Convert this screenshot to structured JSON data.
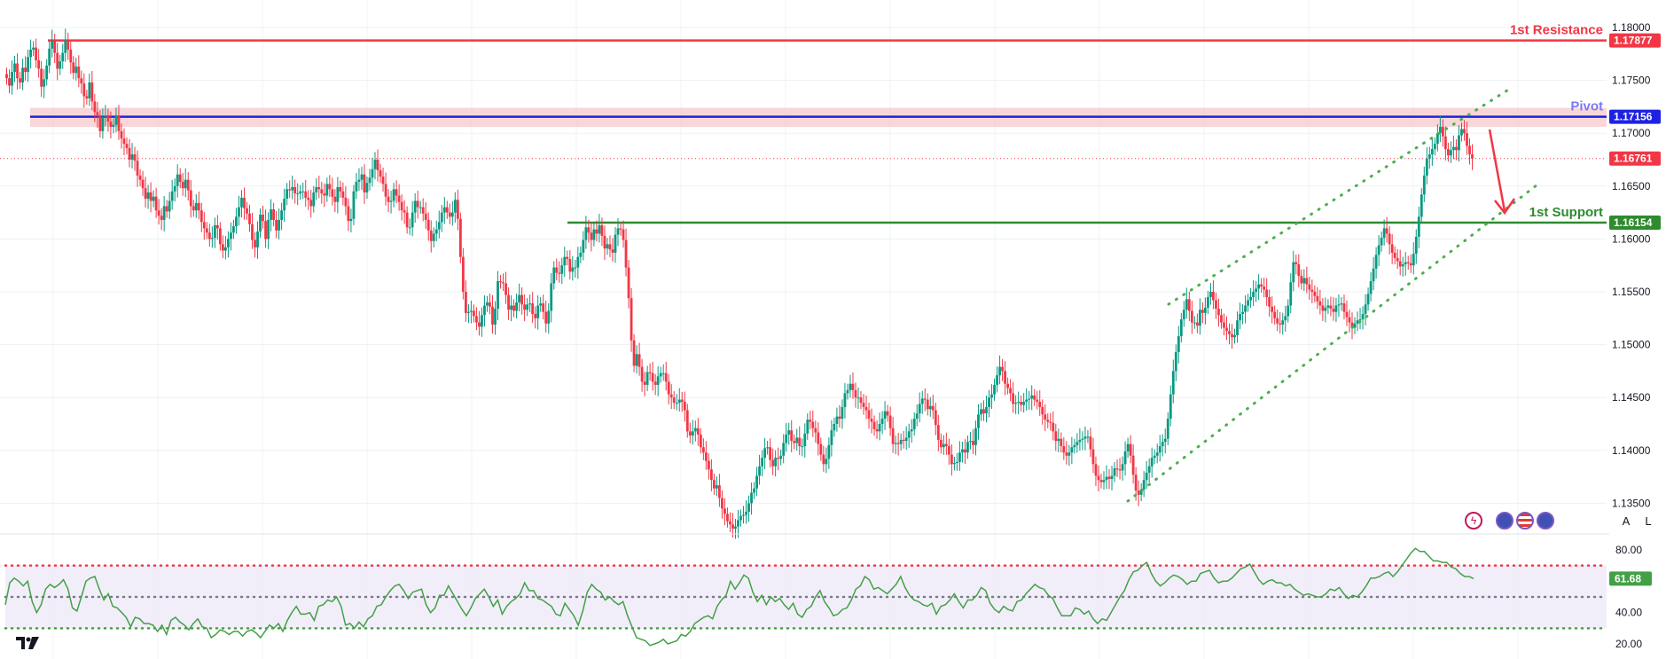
{
  "chart_data": [
    {
      "type": "candlestick",
      "title": "",
      "ylim": [
        1.13,
        1.18
      ],
      "y_ticks": [
        "1.18000",
        "1.17500",
        "1.17000",
        "1.16500",
        "1.16000",
        "1.15500",
        "1.15000",
        "1.14500",
        "1.14000",
        "1.13500"
      ],
      "y_tick_values": [
        1.18,
        1.175,
        1.17,
        1.165,
        1.16,
        1.155,
        1.15,
        1.145,
        1.14,
        1.135
      ],
      "levels": [
        {
          "name": "1st Resistance",
          "value": 1.17877,
          "label": "1.17877",
          "color": "#f23645"
        },
        {
          "name": "Pivot",
          "value": 1.17156,
          "label": "1.17156",
          "color": "#1e22e0",
          "label_color": "#7b7bf5"
        },
        {
          "name": "1st Support",
          "value": 1.16154,
          "label": "1.16154",
          "color": "#2e8b2e"
        }
      ],
      "last_price": {
        "value": 1.16761,
        "label": "1.16761",
        "color": "#f23645"
      },
      "resistance_zone": [
        1.1706,
        1.1724
      ],
      "up_color": "#089981",
      "down_color": "#f23645",
      "channel_color": "#4caf50",
      "arrow_color": "#f23645",
      "candles_close": [
        1.1752,
        1.1745,
        1.1758,
        1.1766,
        1.1752,
        1.1748,
        1.1762,
        1.1758,
        1.1772,
        1.1779,
        1.1781,
        1.1769,
        1.1761,
        1.1744,
        1.1751,
        1.1764,
        1.178,
        1.1787,
        1.1776,
        1.1761,
        1.1768,
        1.1776,
        1.1788,
        1.1779,
        1.1767,
        1.1757,
        1.1763,
        1.1752,
        1.1747,
        1.1735,
        1.1733,
        1.1748,
        1.173,
        1.172,
        1.1716,
        1.1702,
        1.1715,
        1.1716,
        1.1711,
        1.1706,
        1.1708,
        1.1716,
        1.1702,
        1.1695,
        1.169,
        1.1686,
        1.1675,
        1.168,
        1.1674,
        1.166,
        1.1656,
        1.1648,
        1.1638,
        1.1644,
        1.1636,
        1.164,
        1.1627,
        1.1622,
        1.1618,
        1.1631,
        1.1626,
        1.1636,
        1.1645,
        1.165,
        1.1661,
        1.1654,
        1.1648,
        1.1656,
        1.1646,
        1.1631,
        1.1627,
        1.1634,
        1.1627,
        1.1616,
        1.161,
        1.1606,
        1.16,
        1.1601,
        1.1613,
        1.161,
        1.1595,
        1.1589,
        1.1592,
        1.16,
        1.1606,
        1.1612,
        1.1621,
        1.163,
        1.1639,
        1.1629,
        1.1624,
        1.1614,
        1.1599,
        1.1592,
        1.1607,
        1.1623,
        1.1617,
        1.16,
        1.1618,
        1.1628,
        1.1618,
        1.1608,
        1.1618,
        1.1627,
        1.1638,
        1.1647,
        1.1646,
        1.1649,
        1.1643,
        1.1643,
        1.1645,
        1.1645,
        1.1639,
        1.1637,
        1.1631,
        1.1644,
        1.1649,
        1.1647,
        1.1643,
        1.1641,
        1.1652,
        1.1647,
        1.164,
        1.1635,
        1.1649,
        1.1645,
        1.1639,
        1.1631,
        1.1617,
        1.1619,
        1.1645,
        1.1654,
        1.1656,
        1.1661,
        1.1644,
        1.1653,
        1.1658,
        1.1666,
        1.1675,
        1.1665,
        1.1659,
        1.1652,
        1.164,
        1.1635,
        1.1636,
        1.1647,
        1.1641,
        1.1635,
        1.1627,
        1.1625,
        1.1611,
        1.1611,
        1.1625,
        1.1636,
        1.163,
        1.163,
        1.1624,
        1.1618,
        1.1608,
        1.1598,
        1.1605,
        1.1609,
        1.1616,
        1.1625,
        1.163,
        1.1625,
        1.1621,
        1.1625,
        1.1637,
        1.1619,
        1.1583,
        1.155,
        1.153,
        1.1531,
        1.1532,
        1.1527,
        1.1521,
        1.1517,
        1.1528,
        1.1537,
        1.154,
        1.1536,
        1.1519,
        1.1534,
        1.156,
        1.1559,
        1.1558,
        1.1547,
        1.1533,
        1.1537,
        1.1532,
        1.154,
        1.1547,
        1.1538,
        1.1533,
        1.1538,
        1.1539,
        1.1529,
        1.1525,
        1.1537,
        1.1539,
        1.1531,
        1.152,
        1.1532,
        1.1558,
        1.1573,
        1.1568,
        1.1567,
        1.1575,
        1.1583,
        1.1581,
        1.1569,
        1.1573,
        1.1573,
        1.1583,
        1.1587,
        1.1599,
        1.1611,
        1.1606,
        1.1599,
        1.1609,
        1.1605,
        1.1613,
        1.1603,
        1.1591,
        1.1595,
        1.159,
        1.1587,
        1.1604,
        1.161,
        1.1609,
        1.1599,
        1.1573,
        1.1544,
        1.1504,
        1.148,
        1.1491,
        1.1479,
        1.1465,
        1.1462,
        1.1474,
        1.1473,
        1.1465,
        1.1462,
        1.147,
        1.1473,
        1.1473,
        1.1465,
        1.1453,
        1.145,
        1.1445,
        1.1445,
        1.1448,
        1.1446,
        1.1438,
        1.1418,
        1.1414,
        1.1418,
        1.1421,
        1.1415,
        1.1403,
        1.1398,
        1.139,
        1.1382,
        1.1372,
        1.1364,
        1.1367,
        1.1355,
        1.1345,
        1.134,
        1.1333,
        1.133,
        1.1326,
        1.1328,
        1.1334,
        1.1338,
        1.1339,
        1.1342,
        1.135,
        1.136,
        1.1364,
        1.1376,
        1.1385,
        1.1393,
        1.1402,
        1.1403,
        1.1391,
        1.1385,
        1.1393,
        1.1392,
        1.1395,
        1.1407,
        1.1415,
        1.1419,
        1.1409,
        1.1407,
        1.1412,
        1.1404,
        1.1404,
        1.1416,
        1.1429,
        1.1427,
        1.1421,
        1.1417,
        1.1406,
        1.1396,
        1.1387,
        1.1392,
        1.1405,
        1.1419,
        1.1425,
        1.1432,
        1.143,
        1.1441,
        1.1454,
        1.1457,
        1.1463,
        1.1457,
        1.145,
        1.145,
        1.1445,
        1.1441,
        1.1438,
        1.143,
        1.1427,
        1.142,
        1.1418,
        1.1425,
        1.143,
        1.1437,
        1.1433,
        1.1421,
        1.1406,
        1.1407,
        1.1406,
        1.141,
        1.1409,
        1.1412,
        1.1418,
        1.142,
        1.143,
        1.1435,
        1.1444,
        1.1449,
        1.1448,
        1.1439,
        1.1442,
        1.1438,
        1.1424,
        1.141,
        1.1403,
        1.1406,
        1.1404,
        1.1396,
        1.1387,
        1.1388,
        1.1389,
        1.1398,
        1.1401,
        1.1398,
        1.1408,
        1.1409,
        1.1405,
        1.1421,
        1.1434,
        1.1439,
        1.1435,
        1.1441,
        1.145,
        1.1453,
        1.1462,
        1.1471,
        1.1479,
        1.1475,
        1.1463,
        1.1459,
        1.1454,
        1.1444,
        1.1445,
        1.1446,
        1.1443,
        1.1446,
        1.1448,
        1.1449,
        1.1452,
        1.1448,
        1.1446,
        1.1441,
        1.1434,
        1.1429,
        1.1427,
        1.1426,
        1.1418,
        1.1409,
        1.1411,
        1.1404,
        1.1398,
        1.1395,
        1.1398,
        1.1403,
        1.1405,
        1.1408,
        1.141,
        1.1411,
        1.1413,
        1.1413,
        1.1401,
        1.1387,
        1.1376,
        1.1372,
        1.137,
        1.1372,
        1.1375,
        1.1373,
        1.1376,
        1.1383,
        1.1382,
        1.1381,
        1.1387,
        1.1399,
        1.1406,
        1.1395,
        1.1377,
        1.1362,
        1.1358,
        1.1363,
        1.1372,
        1.1379,
        1.1385,
        1.1393,
        1.1395,
        1.1398,
        1.1404,
        1.1408,
        1.1411,
        1.143,
        1.1453,
        1.1475,
        1.1493,
        1.1508,
        1.1524,
        1.1533,
        1.1543,
        1.1532,
        1.1521,
        1.1521,
        1.1518,
        1.1533,
        1.153,
        1.1535,
        1.1545,
        1.155,
        1.1542,
        1.1534,
        1.1528,
        1.1521,
        1.1516,
        1.1513,
        1.151,
        1.1507,
        1.1509,
        1.1523,
        1.1529,
        1.1531,
        1.1537,
        1.1542,
        1.1545,
        1.155,
        1.1553,
        1.1557,
        1.1555,
        1.1552,
        1.1545,
        1.1536,
        1.1531,
        1.1525,
        1.152,
        1.1519,
        1.1523,
        1.1527,
        1.1537,
        1.1559,
        1.1578,
        1.1576,
        1.1565,
        1.1558,
        1.1563,
        1.1557,
        1.1552,
        1.155,
        1.1546,
        1.1541,
        1.1537,
        1.1532,
        1.1535,
        1.1537,
        1.1534,
        1.1531,
        1.1537,
        1.1538,
        1.1539,
        1.1531,
        1.1526,
        1.1521,
        1.1516,
        1.152,
        1.1523,
        1.1524,
        1.1529,
        1.1538,
        1.1548,
        1.156,
        1.1572,
        1.1585,
        1.1594,
        1.1601,
        1.161,
        1.1605,
        1.1595,
        1.1587,
        1.1582,
        1.1579,
        1.1574,
        1.1576,
        1.1578,
        1.1577,
        1.1575,
        1.1586,
        1.1602,
        1.1621,
        1.1642,
        1.166,
        1.1676,
        1.168,
        1.1685,
        1.169,
        1.17,
        1.1706,
        1.1697,
        1.1685,
        1.1679,
        1.1684,
        1.1687,
        1.1684,
        1.1698,
        1.1704,
        1.17,
        1.1688,
        1.168,
        1.1676
      ]
    },
    {
      "type": "line",
      "title": "",
      "ylim": [
        20,
        86
      ],
      "y_ticks": [
        "80.00",
        "40.00",
        "20.00"
      ],
      "y_tick_values": [
        80,
        40,
        20
      ],
      "upper_band": 70,
      "middle_band": 50,
      "lower_band": 30,
      "last_value": {
        "value": 61.68,
        "label": "61.68",
        "color": "#43a047"
      },
      "line_color": "#43a047",
      "values": [
        45,
        59,
        62,
        60,
        57,
        60,
        47,
        40,
        45,
        55,
        58,
        56,
        58,
        61,
        55,
        43,
        41,
        50,
        60,
        62,
        63,
        55,
        48,
        52,
        44,
        43,
        40,
        37,
        31,
        37,
        36,
        33,
        33,
        32,
        28,
        32,
        26,
        35,
        37,
        34,
        32,
        29,
        33,
        36,
        31,
        30,
        24,
        26,
        29,
        28,
        26,
        28,
        28,
        25,
        28,
        29,
        27,
        24,
        28,
        32,
        30,
        33,
        28,
        35,
        40,
        44,
        39,
        39,
        40,
        35,
        44,
        45,
        48,
        47,
        50,
        44,
        32,
        33,
        30,
        34,
        31,
        36,
        38,
        44,
        45,
        50,
        54,
        57,
        58,
        54,
        49,
        53,
        54,
        55,
        45,
        40,
        43,
        51,
        51,
        57,
        52,
        47,
        42,
        38,
        43,
        49,
        52,
        55,
        50,
        44,
        48,
        39,
        44,
        47,
        49,
        52,
        59,
        54,
        54,
        49,
        48,
        46,
        44,
        39,
        38,
        46,
        42,
        38,
        32,
        41,
        53,
        58,
        55,
        53,
        48,
        50,
        47,
        45,
        47,
        38,
        31,
        24,
        23,
        22,
        19,
        20,
        21,
        23,
        20,
        21,
        22,
        26,
        25,
        28,
        33,
        35,
        37,
        38,
        36,
        44,
        48,
        51,
        60,
        55,
        59,
        64,
        62,
        53,
        47,
        51,
        45,
        50,
        47,
        49,
        45,
        42,
        46,
        39,
        37,
        42,
        44,
        50,
        54,
        47,
        43,
        38,
        39,
        42,
        43,
        48,
        55,
        57,
        63,
        61,
        55,
        56,
        54,
        52,
        55,
        58,
        63,
        56,
        51,
        48,
        47,
        45,
        44,
        46,
        39,
        44,
        45,
        48,
        52,
        47,
        43,
        48,
        48,
        51,
        56,
        54,
        46,
        42,
        40,
        44,
        42,
        41,
        47,
        48,
        52,
        55,
        58,
        56,
        55,
        51,
        49,
        43,
        38,
        38,
        38,
        43,
        42,
        39,
        41,
        36,
        33,
        36,
        35,
        40,
        45,
        50,
        54,
        61,
        66,
        67,
        70,
        72,
        65,
        60,
        57,
        59,
        62,
        64,
        63,
        61,
        58,
        60,
        60,
        65,
        66,
        67,
        62,
        59,
        60,
        60,
        62,
        65,
        68,
        69,
        71,
        66,
        61,
        58,
        60,
        61,
        59,
        59,
        57,
        58,
        55,
        53,
        51,
        52,
        51,
        50,
        50,
        52,
        55,
        54,
        56,
        52,
        49,
        51,
        50,
        53,
        57,
        62,
        62,
        63,
        65,
        66,
        63,
        66,
        70,
        74,
        78,
        81,
        79,
        79,
        76,
        73,
        73,
        72,
        72,
        69,
        68,
        65,
        63,
        63,
        61.68
      ]
    }
  ],
  "toolbar": {
    "auto_label": "A",
    "log_label": "L"
  },
  "icons": {
    "bolt": "lightning-icon",
    "flag1": "eu-flag-icon",
    "flag2": "us-flag-icon",
    "flag3": "eu-flag-icon-2",
    "logo": "tradingview-logo"
  }
}
